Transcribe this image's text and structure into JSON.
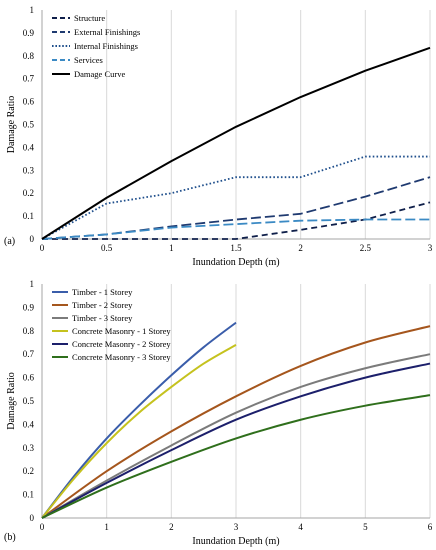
{
  "chart_data": [
    {
      "panel_label": "(a)",
      "type": "line",
      "xlabel": "Inundation Depth (m)",
      "ylabel": "Damage Ratio",
      "xlim": [
        0,
        3
      ],
      "ylim": [
        0,
        1
      ],
      "x_ticks": [
        "0",
        "0.5",
        "1",
        "1.5",
        "2",
        "2.5",
        "3"
      ],
      "y_ticks": [
        "0",
        "0.1",
        "0.2",
        "0.3",
        "0.4",
        "0.5",
        "0.6",
        "0.7",
        "0.8",
        "0.9",
        "1"
      ],
      "grid": "vertical",
      "legend_position": "top-left",
      "series": [
        {
          "name": "Structure",
          "color": "#0f1f4a",
          "style": "dashed",
          "x": [
            0,
            0.5,
            1,
            1.5,
            2,
            2.5,
            3
          ],
          "y": [
            0,
            0,
            0,
            0,
            0.04,
            0.085,
            0.16
          ]
        },
        {
          "name": "External Finishings",
          "color": "#1f3a70",
          "style": "longdash",
          "x": [
            0,
            0.5,
            1,
            1.5,
            2,
            2.5,
            3
          ],
          "y": [
            0,
            0.02,
            0.055,
            0.085,
            0.11,
            0.185,
            0.27
          ]
        },
        {
          "name": "Internal Finishings",
          "color": "#1f4f8c",
          "style": "dotted",
          "x": [
            0,
            0.5,
            1,
            1.5,
            2,
            2.5,
            3
          ],
          "y": [
            0,
            0.155,
            0.2,
            0.27,
            0.27,
            0.36,
            0.36
          ]
        },
        {
          "name": "Services",
          "color": "#3b8ac4",
          "style": "longdash",
          "x": [
            0,
            0.5,
            1,
            1.5,
            2,
            2.5,
            3
          ],
          "y": [
            0,
            0.02,
            0.05,
            0.065,
            0.08,
            0.085,
            0.085
          ]
        },
        {
          "name": "Damage Curve",
          "color": "#000000",
          "style": "solid",
          "x": [
            0,
            0.5,
            1,
            1.5,
            2,
            2.5,
            3
          ],
          "y": [
            0,
            0.18,
            0.34,
            0.49,
            0.62,
            0.735,
            0.835
          ]
        }
      ]
    },
    {
      "panel_label": "(b)",
      "type": "line",
      "xlabel": "Inundation Depth (m)",
      "ylabel": "Damage Ratio",
      "xlim": [
        0,
        6
      ],
      "ylim": [
        0,
        1
      ],
      "x_ticks": [
        "0",
        "1",
        "2",
        "3",
        "4",
        "5",
        "6"
      ],
      "y_ticks": [
        "0",
        "0.1",
        "0.2",
        "0.3",
        "0.4",
        "0.5",
        "0.6",
        "0.7",
        "0.8",
        "0.9",
        "1"
      ],
      "grid": "vertical",
      "legend_position": "top-left",
      "series": [
        {
          "name": "Timber - 1 Storey",
          "color": "#3a5daa",
          "style": "solid",
          "x": [
            0,
            0.5,
            1,
            1.5,
            2,
            2.5,
            3
          ],
          "y": [
            0,
            0.18,
            0.34,
            0.48,
            0.61,
            0.73,
            0.835
          ]
        },
        {
          "name": "Timber - 2 Storey",
          "color": "#a5561d",
          "style": "solid",
          "x": [
            0,
            1,
            2,
            3,
            4,
            5,
            6
          ],
          "y": [
            0,
            0.2,
            0.37,
            0.52,
            0.65,
            0.75,
            0.82
          ]
        },
        {
          "name": "Timber - 3 Storey",
          "color": "#7b7b7b",
          "style": "solid",
          "x": [
            0,
            1,
            2,
            3,
            4,
            5,
            6
          ],
          "y": [
            0,
            0.16,
            0.31,
            0.45,
            0.56,
            0.64,
            0.7
          ]
        },
        {
          "name": "Concrete Masonry - 1 Storey",
          "color": "#c5c21e",
          "style": "solid",
          "x": [
            0,
            0.5,
            1,
            1.5,
            2,
            2.5,
            3
          ],
          "y": [
            0,
            0.17,
            0.32,
            0.45,
            0.56,
            0.66,
            0.74
          ]
        },
        {
          "name": "Concrete Masonry - 2 Storey",
          "color": "#1c1f6b",
          "style": "solid",
          "x": [
            0,
            1,
            2,
            3,
            4,
            5,
            6
          ],
          "y": [
            0,
            0.15,
            0.29,
            0.42,
            0.52,
            0.6,
            0.66
          ]
        },
        {
          "name": "Concrete Masonry - 3 Storey",
          "color": "#2f6f1c",
          "style": "solid",
          "x": [
            0,
            1,
            2,
            3,
            4,
            5,
            6
          ],
          "y": [
            0,
            0.13,
            0.24,
            0.34,
            0.42,
            0.48,
            0.525
          ]
        }
      ]
    }
  ]
}
